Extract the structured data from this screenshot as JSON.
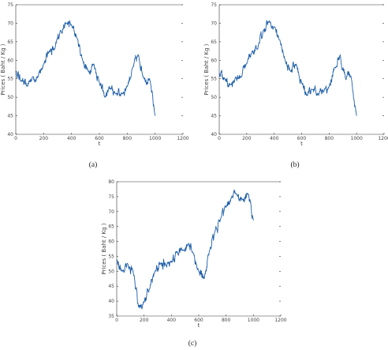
{
  "chart_data": [
    {
      "type": "line",
      "caption": "(a)",
      "xlabel": "t",
      "ylabel": "Prices ( Baht / Kg )",
      "xlim": [
        0,
        1200
      ],
      "ylim": [
        40,
        75
      ],
      "xticks": [
        0,
        200,
        400,
        600,
        800,
        1000,
        1200
      ],
      "yticks": [
        40,
        45,
        50,
        55,
        60,
        65,
        70,
        75
      ],
      "series": [
        {
          "x": [
            0,
            40,
            80,
            120,
            160,
            200,
            240,
            280,
            320,
            360,
            400,
            440,
            480,
            520,
            560,
            600,
            640,
            680,
            720,
            760,
            800,
            840,
            880,
            920,
            960,
            1000
          ],
          "values": [
            57,
            54.5,
            53,
            55.5,
            55.5,
            59,
            62.5,
            63,
            68,
            70,
            69.5,
            66,
            60,
            57,
            59,
            54,
            50,
            52.5,
            51,
            51,
            53,
            58,
            61.5,
            55,
            55,
            45
          ]
        }
      ]
    },
    {
      "type": "line",
      "caption": "(b)",
      "xlabel": "t",
      "ylabel": "Prices ( Baht / Kg )",
      "xlim": [
        0,
        1200
      ],
      "ylim": [
        40,
        75
      ],
      "xticks": [
        0,
        200,
        400,
        600,
        800,
        1000,
        1200
      ],
      "yticks": [
        40,
        45,
        50,
        55,
        60,
        65,
        70,
        75
      ],
      "series": [
        {
          "x": [
            0,
            40,
            80,
            120,
            160,
            200,
            240,
            280,
            320,
            360,
            400,
            440,
            480,
            520,
            560,
            600,
            640,
            680,
            720,
            760,
            800,
            840,
            880,
            920,
            960,
            1000
          ],
          "values": [
            56.5,
            55,
            53.5,
            55.5,
            55.5,
            59,
            62.5,
            63,
            68,
            70.5,
            69,
            65.5,
            60,
            57,
            59,
            54,
            50.5,
            52,
            51,
            51.5,
            53,
            58,
            61.5,
            55,
            55.5,
            45
          ]
        }
      ]
    },
    {
      "type": "line",
      "caption": "(c)",
      "xlabel": "t",
      "ylabel": "Prices ( Baht / Kg )",
      "xlim": [
        0,
        1200
      ],
      "ylim": [
        35,
        80
      ],
      "xticks": [
        0,
        200,
        400,
        600,
        800,
        1000,
        1200
      ],
      "yticks": [
        35,
        40,
        45,
        50,
        55,
        60,
        65,
        70,
        75,
        80
      ],
      "series": [
        {
          "x": [
            0,
            40,
            80,
            120,
            160,
            200,
            240,
            280,
            320,
            360,
            400,
            440,
            480,
            520,
            560,
            600,
            640,
            680,
            720,
            760,
            800,
            840,
            880,
            920,
            960,
            1000
          ],
          "values": [
            54,
            50,
            52.5,
            50,
            38,
            39.5,
            44,
            50,
            52.5,
            52,
            53,
            56.5,
            57,
            59,
            56,
            50,
            47.5,
            57,
            63.5,
            67.5,
            71.5,
            75,
            75.5,
            74,
            76,
            67
          ]
        }
      ]
    }
  ]
}
